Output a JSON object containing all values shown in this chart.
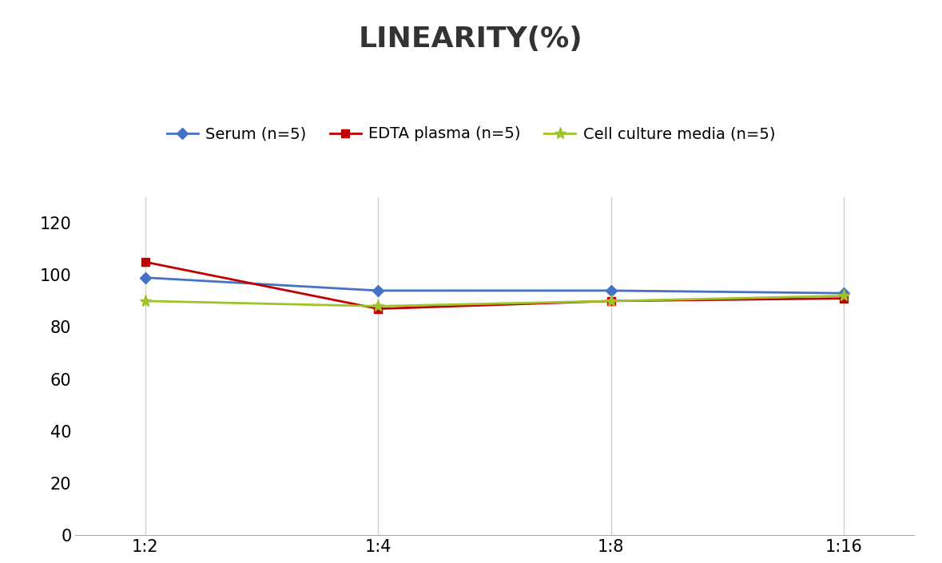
{
  "title": "LINEARITY(%)",
  "x_labels": [
    "1:2",
    "1:4",
    "1:8",
    "1:16"
  ],
  "x_positions": [
    0,
    1,
    2,
    3
  ],
  "series": [
    {
      "label": "Serum (n=5)",
      "values": [
        99,
        94,
        94,
        93
      ],
      "color": "#4472C4",
      "marker": "D",
      "marker_size": 7,
      "linewidth": 2
    },
    {
      "label": "EDTA plasma (n=5)",
      "values": [
        105,
        87,
        90,
        91
      ],
      "color": "#C00000",
      "marker": "s",
      "marker_size": 7,
      "linewidth": 2
    },
    {
      "label": "Cell culture media (n=5)",
      "values": [
        90,
        88,
        90,
        92
      ],
      "color": "#9DC52B",
      "marker": "*",
      "marker_size": 11,
      "linewidth": 2
    }
  ],
  "ylim": [
    0,
    130
  ],
  "yticks": [
    0,
    20,
    40,
    60,
    80,
    100,
    120
  ],
  "background_color": "#ffffff",
  "grid_color": "#d0d0d0",
  "title_fontsize": 26,
  "tick_fontsize": 15,
  "legend_fontsize": 14
}
